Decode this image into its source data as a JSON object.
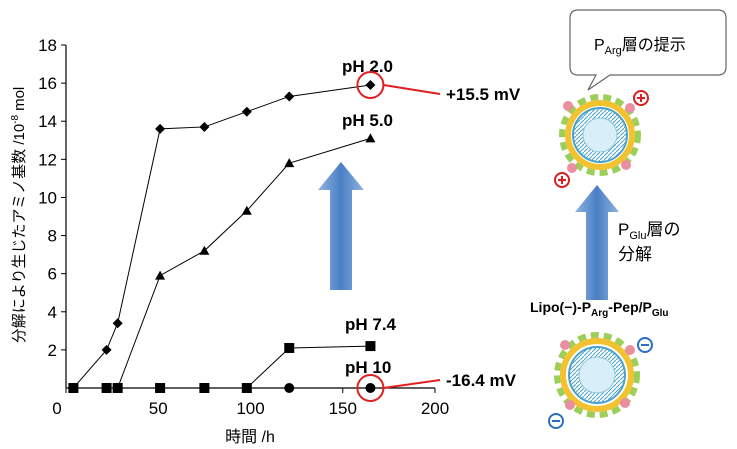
{
  "chart_data": {
    "type": "line",
    "x_label": "時間 /h",
    "y_label": [
      "分解により生じたアミノ基数 /10",
      "-8",
      "mol"
    ],
    "xlim": [
      0,
      200
    ],
    "xticks": [
      0,
      50,
      100,
      150,
      200
    ],
    "ylim": [
      0,
      18
    ],
    "yticks": [
      2,
      4,
      6,
      8,
      10,
      12,
      14,
      16,
      18
    ],
    "x": [
      4,
      22,
      28,
      51,
      75,
      98,
      121,
      165
    ],
    "series": [
      {
        "name": "pH 2.0",
        "color": "#000000",
        "marker": "diamond",
        "values": [
          0,
          2.0,
          3.4,
          13.6,
          13.7,
          14.5,
          15.3,
          15.9
        ]
      },
      {
        "name": "pH 5.0",
        "color": "#000000",
        "marker": "triangle",
        "values": [
          0,
          0,
          0,
          5.9,
          7.2,
          9.3,
          11.8,
          13.1
        ]
      },
      {
        "name": "pH 7.4",
        "color": "#000000",
        "marker": "square",
        "values": [
          0,
          0,
          0,
          0,
          0,
          0,
          2.1,
          2.2
        ]
      },
      {
        "name": "pH 10",
        "color": "#000000",
        "marker": "circle",
        "values": [
          0,
          0,
          0,
          0,
          0,
          0,
          0,
          0
        ]
      }
    ],
    "annotations": [
      "+15.5 mV",
      "-16.4 mV"
    ]
  },
  "diagram": {
    "bubble": [
      "P",
      "Arg",
      "層の提示"
    ],
    "step": [
      "P",
      "Glu",
      "層の",
      "分解"
    ],
    "construct": [
      "Lipo(−)-P",
      "Arg",
      "-Pep/P",
      "Glu"
    ]
  }
}
